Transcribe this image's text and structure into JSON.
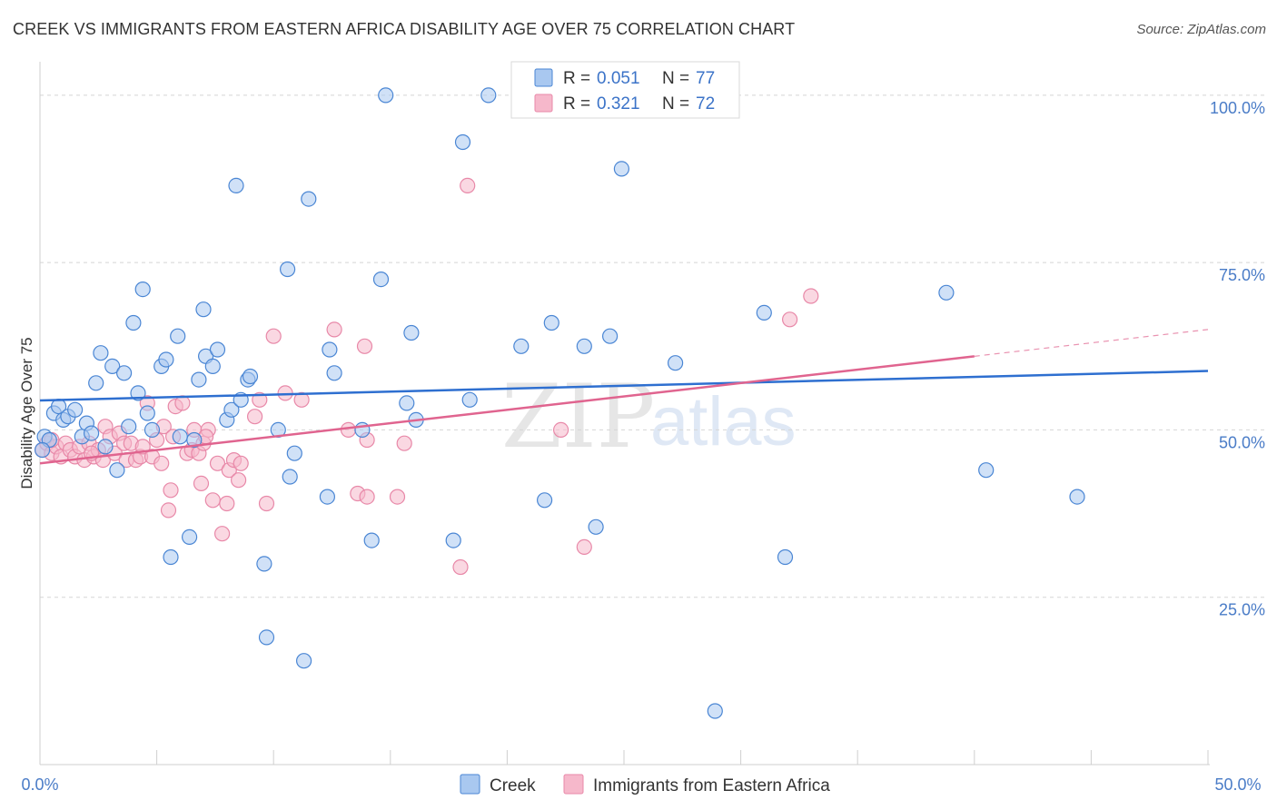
{
  "header": {
    "title": "CREEK VS IMMIGRANTS FROM EASTERN AFRICA DISABILITY AGE OVER 75 CORRELATION CHART",
    "source": "Source: ZipAtlas.com"
  },
  "watermark": {
    "part1": "ZIP",
    "part2": "atlas"
  },
  "legend": {
    "r_label": "R =",
    "n_label": "N =",
    "items": [
      {
        "r": "0.051",
        "n": "77"
      },
      {
        "r": "0.321",
        "n": "72"
      }
    ]
  },
  "bottom_legend": [
    "Creek",
    "Immigrants from Eastern Africa"
  ],
  "colors": {
    "creek_fill": "#a9c8f0",
    "creek_stroke": "#4a86d4",
    "creek_line": "#2e6fd0",
    "imm_fill": "#f6b8cb",
    "imm_stroke": "#e888a8",
    "imm_line": "#e0648f",
    "grid": "#d5d5d5",
    "tick_text": "#4a7cc7"
  },
  "chart_data": {
    "type": "scatter",
    "title": "CREEK VS IMMIGRANTS FROM EASTERN AFRICA DISABILITY AGE OVER 75 CORRELATION CHART",
    "xlabel": "",
    "ylabel": "Disability Age Over 75",
    "xlim": [
      0,
      50
    ],
    "ylim": [
      0,
      105
    ],
    "x_tick_labels": [
      "0.0%",
      "50.0%"
    ],
    "y_ticks": [
      25,
      50,
      75,
      100
    ],
    "y_tick_labels": [
      "25.0%",
      "50.0%",
      "75.0%",
      "100.0%"
    ],
    "grid": "horizontal dashed",
    "legend_position": "top-center",
    "series": [
      {
        "name": "Creek",
        "R": 0.051,
        "N": 77,
        "trend": {
          "x": [
            0,
            50
          ],
          "y": [
            54.4,
            58.8
          ]
        },
        "points": [
          [
            0.2,
            49
          ],
          [
            0.4,
            48.5
          ],
          [
            0.6,
            52.5
          ],
          [
            0.8,
            53.5
          ],
          [
            1.0,
            51.5
          ],
          [
            1.2,
            52
          ],
          [
            1.5,
            53
          ],
          [
            1.8,
            49
          ],
          [
            2.0,
            51
          ],
          [
            2.2,
            49.5
          ],
          [
            2.4,
            57
          ],
          [
            2.6,
            61.5
          ],
          [
            2.8,
            47.5
          ],
          [
            3.1,
            59.5
          ],
          [
            3.3,
            44
          ],
          [
            3.6,
            58.5
          ],
          [
            3.8,
            50.5
          ],
          [
            4.0,
            66
          ],
          [
            4.2,
            55.5
          ],
          [
            4.4,
            71
          ],
          [
            4.6,
            52.5
          ],
          [
            4.8,
            50
          ],
          [
            5.2,
            59.5
          ],
          [
            5.4,
            60.5
          ],
          [
            5.6,
            31
          ],
          [
            5.9,
            64
          ],
          [
            6.0,
            49
          ],
          [
            6.4,
            34
          ],
          [
            6.6,
            48.5
          ],
          [
            6.8,
            57.5
          ],
          [
            7.0,
            68
          ],
          [
            7.1,
            61
          ],
          [
            7.4,
            59.5
          ],
          [
            7.6,
            62
          ],
          [
            8.0,
            51.5
          ],
          [
            8.2,
            53
          ],
          [
            8.4,
            86.5
          ],
          [
            8.6,
            54.5
          ],
          [
            8.9,
            57.5
          ],
          [
            9.0,
            58
          ],
          [
            9.6,
            30
          ],
          [
            9.7,
            19
          ],
          [
            10.2,
            50
          ],
          [
            10.6,
            74
          ],
          [
            10.7,
            43
          ],
          [
            10.9,
            46.5
          ],
          [
            11.3,
            15.5
          ],
          [
            11.5,
            84.5
          ],
          [
            12.3,
            40
          ],
          [
            12.6,
            58.5
          ],
          [
            12.4,
            62
          ],
          [
            13.8,
            50
          ],
          [
            14.2,
            33.5
          ],
          [
            14.6,
            72.5
          ],
          [
            14.8,
            100
          ],
          [
            15.7,
            54
          ],
          [
            15.9,
            64.5
          ],
          [
            16.1,
            51.5
          ],
          [
            17.7,
            33.5
          ],
          [
            18.1,
            93
          ],
          [
            18.4,
            54.5
          ],
          [
            19.2,
            100
          ],
          [
            20.6,
            62.5
          ],
          [
            21.6,
            39.5
          ],
          [
            21.9,
            66
          ],
          [
            23.3,
            62.5
          ],
          [
            23.8,
            35.5
          ],
          [
            24.4,
            64
          ],
          [
            24.9,
            89
          ],
          [
            27.2,
            60
          ],
          [
            28.9,
            8
          ],
          [
            31.0,
            67.5
          ],
          [
            31.9,
            31
          ],
          [
            38.8,
            70.5
          ],
          [
            40.5,
            44
          ],
          [
            44.4,
            40
          ],
          [
            0.1,
            47
          ]
        ]
      },
      {
        "name": "Immigrants from Eastern Africa",
        "R": 0.321,
        "N": 72,
        "trend": {
          "x": [
            0,
            40
          ],
          "y": [
            45,
            61
          ]
        },
        "trend_dashed": {
          "x": [
            40,
            50
          ],
          "y": [
            61,
            65
          ]
        },
        "points": [
          [
            0.1,
            47
          ],
          [
            0.3,
            48
          ],
          [
            0.5,
            46.5
          ],
          [
            0.7,
            47.5
          ],
          [
            0.9,
            46
          ],
          [
            1.1,
            48
          ],
          [
            1.3,
            47
          ],
          [
            1.5,
            46
          ],
          [
            1.7,
            47.5
          ],
          [
            1.9,
            45.5
          ],
          [
            2.1,
            48
          ],
          [
            2.3,
            46
          ],
          [
            2.5,
            47
          ],
          [
            2.7,
            45.5
          ],
          [
            2.8,
            50.5
          ],
          [
            3.0,
            49
          ],
          [
            3.2,
            46.5
          ],
          [
            3.4,
            49.5
          ],
          [
            3.6,
            48
          ],
          [
            3.7,
            45.5
          ],
          [
            3.9,
            48
          ],
          [
            4.1,
            45.5
          ],
          [
            4.3,
            46
          ],
          [
            4.4,
            47.5
          ],
          [
            4.6,
            54
          ],
          [
            4.8,
            46
          ],
          [
            5.0,
            48.5
          ],
          [
            5.2,
            45
          ],
          [
            5.3,
            50.5
          ],
          [
            5.5,
            38
          ],
          [
            5.6,
            41
          ],
          [
            5.7,
            49
          ],
          [
            5.8,
            53.5
          ],
          [
            6.1,
            54
          ],
          [
            6.3,
            46.5
          ],
          [
            6.5,
            47
          ],
          [
            6.6,
            50
          ],
          [
            6.8,
            46.5
          ],
          [
            6.9,
            42
          ],
          [
            7.0,
            48
          ],
          [
            7.2,
            50
          ],
          [
            7.4,
            39.5
          ],
          [
            7.6,
            45
          ],
          [
            7.8,
            34.5
          ],
          [
            8.0,
            39
          ],
          [
            8.1,
            44
          ],
          [
            8.3,
            45.5
          ],
          [
            8.5,
            42.5
          ],
          [
            8.6,
            45
          ],
          [
            9.2,
            52
          ],
          [
            9.4,
            54.5
          ],
          [
            9.7,
            39
          ],
          [
            10.0,
            64
          ],
          [
            10.5,
            55.5
          ],
          [
            11.2,
            54.5
          ],
          [
            12.6,
            65
          ],
          [
            13.2,
            50
          ],
          [
            13.6,
            40.5
          ],
          [
            13.9,
            62.5
          ],
          [
            14.0,
            40
          ],
          [
            14.0,
            48.5
          ],
          [
            15.3,
            40
          ],
          [
            15.6,
            48
          ],
          [
            18.0,
            29.5
          ],
          [
            18.3,
            86.5
          ],
          [
            22.3,
            50
          ],
          [
            23.3,
            32.5
          ],
          [
            32.1,
            66.5
          ],
          [
            33.0,
            70
          ],
          [
            7.1,
            49
          ],
          [
            2.2,
            46.5
          ],
          [
            0.5,
            48.5
          ]
        ]
      }
    ]
  }
}
